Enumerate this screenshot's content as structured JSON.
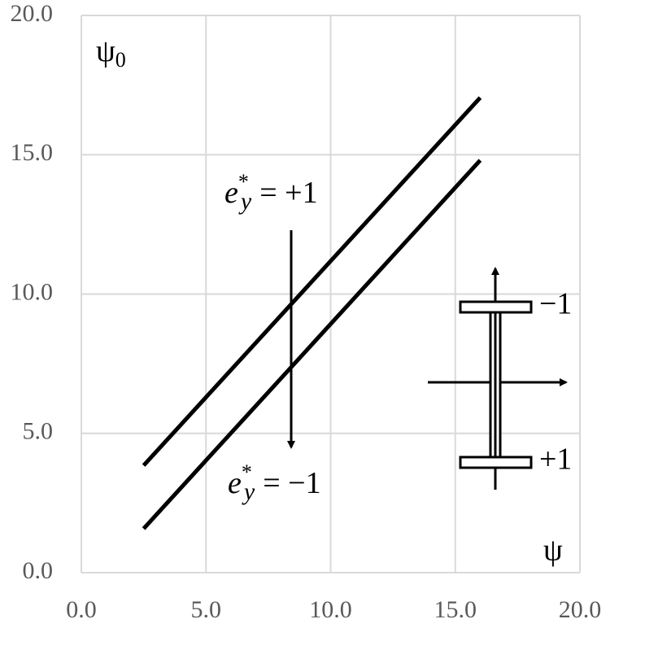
{
  "chart_data": {
    "type": "line",
    "x": [
      2.5,
      16
    ],
    "series": [
      {
        "color": "#000000",
        "values": [
          3.85,
          17.05
        ]
      },
      {
        "color": "#000000",
        "values": [
          1.58,
          14.8
        ]
      }
    ],
    "xlim": [
      0,
      20
    ],
    "ylim": [
      0,
      20
    ],
    "xticks": [
      {
        "value": 0,
        "label": "0.0"
      },
      {
        "value": 5,
        "label": "5.0"
      },
      {
        "value": 10,
        "label": "10.0"
      },
      {
        "value": 15,
        "label": "15.0"
      },
      {
        "value": 20,
        "label": "20.0"
      }
    ],
    "yticks": [
      {
        "value": 0,
        "label": "0.0"
      },
      {
        "value": 5,
        "label": "5.0"
      },
      {
        "value": 10,
        "label": "10.0"
      },
      {
        "value": 15,
        "label": "15.0"
      },
      {
        "value": 20,
        "label": "20.0"
      }
    ],
    "grid": true,
    "grid_color": "#d9d9d9",
    "y_label": {
      "base": "ψ",
      "sub": "0"
    },
    "x_label": "ψ",
    "annotations": [
      {
        "base": "e",
        "sup": "*",
        "sub": "y",
        "rest": "= +1"
      },
      {
        "base": "e",
        "sup": "*",
        "sub": "y",
        "rest": "= −1"
      }
    ],
    "section_labels": [
      "−1",
      "+1"
    ]
  }
}
